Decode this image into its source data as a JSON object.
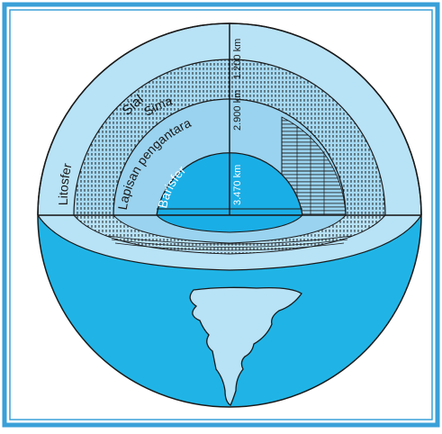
{
  "labels": {
    "sial": "Sial",
    "sima": "Sima",
    "litosfer": "Litosfer",
    "lapisan": "Lapisan pengantara",
    "barisfer": "Barisfer",
    "depth_1200": "1.200 km",
    "depth_2900": "2.900 km",
    "depth_3470": "3.470 km"
  },
  "colors": {
    "frame": "#3aa0d8",
    "sial": "#b8e2f6",
    "sima": "#a6d9f2",
    "mantle": "#9ad3ef",
    "core": "#1aaee6",
    "ocean": "#20b4e6",
    "landmass": "#b8e2f6",
    "outline": "#1a1a1a"
  }
}
